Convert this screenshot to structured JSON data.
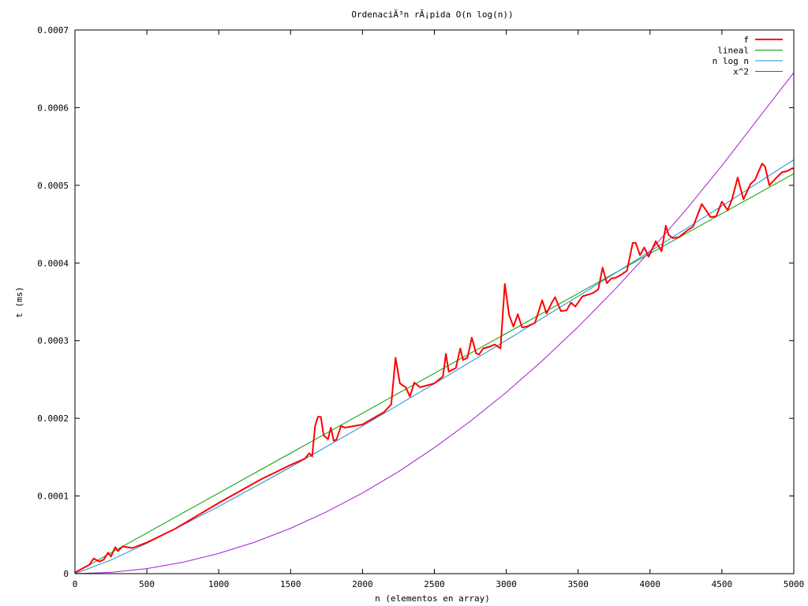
{
  "chart_data": {
    "type": "line",
    "title": "OrdenaciÃ³n rÃ¡pida O(n log(n))",
    "xlabel": "n (elementos en array)",
    "ylabel": "t (ms)",
    "xlim": [
      0,
      5000
    ],
    "ylim": [
      0,
      0.0007
    ],
    "grid": false,
    "legend_position": "top-right",
    "x_ticks": [
      "0",
      "500",
      "1000",
      "1500",
      "2000",
      "2500",
      "3000",
      "3500",
      "4000",
      "4500",
      "5000"
    ],
    "y_ticks": [
      "0",
      "0.0001",
      "0.0002",
      "0.0003",
      "0.0004",
      "0.0005",
      "0.0006",
      "0.0007"
    ],
    "series": [
      {
        "name": "f",
        "color": "#ff0000",
        "x": [
          0,
          100,
          130,
          170,
          200,
          230,
          250,
          280,
          300,
          330,
          400,
          500,
          700,
          1000,
          1300,
          1400,
          1500,
          1600,
          1630,
          1650,
          1670,
          1690,
          1710,
          1730,
          1760,
          1780,
          1800,
          1820,
          1850,
          1880,
          2000,
          2150,
          2200,
          2230,
          2260,
          2300,
          2330,
          2360,
          2400,
          2500,
          2560,
          2580,
          2600,
          2650,
          2680,
          2700,
          2730,
          2760,
          2790,
          2810,
          2840,
          2880,
          2920,
          2960,
          2990,
          3020,
          3050,
          3080,
          3110,
          3140,
          3200,
          3250,
          3280,
          3320,
          3340,
          3380,
          3420,
          3450,
          3480,
          3530,
          3600,
          3640,
          3670,
          3700,
          3730,
          3760,
          3800,
          3840,
          3880,
          3900,
          3930,
          3960,
          3990,
          4020,
          4040,
          4080,
          4110,
          4130,
          4160,
          4200,
          4260,
          4300,
          4360,
          4400,
          4420,
          4460,
          4500,
          4540,
          4570,
          4610,
          4650,
          4700,
          4730,
          4760,
          4780,
          4800,
          4830,
          4880,
          4920,
          4950,
          4990,
          5000
        ],
        "y": [
          1.5e-06,
          1.15e-05,
          1.95e-05,
          1.55e-05,
          1.8e-05,
          2.7e-05,
          2.2e-05,
          3.4e-05,
          2.9e-05,
          3.5e-05,
          3.3e-05,
          4e-05,
          5.8e-05,
          9.1e-05,
          0.000122,
          0.000131,
          0.00014,
          0.000148,
          0.000155,
          0.000151,
          0.00019,
          0.000202,
          0.000202,
          0.000178,
          0.000173,
          0.000188,
          0.000171,
          0.000173,
          0.00019,
          0.000188,
          0.000192,
          0.000208,
          0.000218,
          0.000278,
          0.000245,
          0.00024,
          0.000228,
          0.000246,
          0.00024,
          0.000245,
          0.000254,
          0.000283,
          0.00026,
          0.000265,
          0.00029,
          0.000275,
          0.000278,
          0.000304,
          0.000284,
          0.000282,
          0.00029,
          0.000292,
          0.000295,
          0.00029,
          0.000373,
          0.000333,
          0.000318,
          0.000334,
          0.000317,
          0.000318,
          0.000323,
          0.000352,
          0.000335,
          0.00035,
          0.000356,
          0.000338,
          0.000339,
          0.000349,
          0.000344,
          0.000357,
          0.000361,
          0.000366,
          0.000394,
          0.000374,
          0.00038,
          0.000381,
          0.000385,
          0.00039,
          0.000426,
          0.000426,
          0.00041,
          0.00042,
          0.000408,
          0.00042,
          0.000428,
          0.000415,
          0.000448,
          0.000436,
          0.000432,
          0.000433,
          0.000442,
          0.000447,
          0.000476,
          0.000465,
          0.000459,
          0.00046,
          0.000479,
          0.000468,
          0.000482,
          0.00051,
          0.000482,
          0.000502,
          0.000507,
          0.00052,
          0.000528,
          0.000524,
          0.0005,
          0.00051,
          0.000517,
          0.000518,
          0.000522,
          0.000521
        ]
      },
      {
        "name": "lineal",
        "color": "#00a000",
        "x": [
          0,
          5000
        ],
        "y": [
          1e-06,
          0.000515
        ]
      },
      {
        "name": "n log n",
        "color": "#1f8fd0",
        "x": [
          0,
          250,
          500,
          1000,
          1500,
          2000,
          2500,
          3000,
          3500,
          4000,
          4500,
          5000
        ],
        "y": [
          0,
          1.76e-05,
          3.9e-05,
          8.65e-05,
          0.0001372,
          0.0001901,
          0.0002446,
          0.0003004,
          0.0003572,
          0.0004149,
          0.0004733,
          0.000533
        ]
      },
      {
        "name": "x^2",
        "color": "#a020d0",
        "x": [
          0,
          250,
          500,
          750,
          1000,
          1250,
          1500,
          1750,
          2000,
          2250,
          2500,
          2750,
          3000,
          3250,
          3500,
          3750,
          4000,
          4250,
          4500,
          4750,
          5000
        ],
        "y": [
          0,
          1.6e-06,
          6.5e-06,
          1.46e-05,
          2.6e-05,
          4.05e-05,
          5.84e-05,
          7.95e-05,
          0.0001038,
          0.0001313,
          0.0001622,
          0.0001962,
          0.0002335,
          0.000274,
          0.0003178,
          0.0003649,
          0.0004151,
          0.0004686,
          0.0005254,
          0.0005853,
          0.000645
        ]
      }
    ]
  }
}
